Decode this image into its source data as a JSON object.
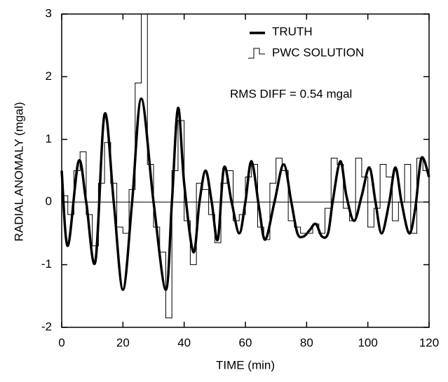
{
  "chart_data": {
    "type": "line",
    "xlabel": "TIME (min)",
    "ylabel": "RADIAL ANOMALY (mgal)",
    "annotation": "RMS DIFF = 0.54 mgal",
    "xlim": [
      0,
      120
    ],
    "xticks": [
      0,
      20,
      40,
      60,
      80,
      100,
      120
    ],
    "ylim": [
      -2,
      3
    ],
    "yticks": [
      -2,
      -1,
      0,
      1,
      2,
      3
    ],
    "reference_line": 0,
    "series": [
      {
        "name": "TRUTH",
        "color": "#000000",
        "style": "smooth",
        "x": [
          0,
          2,
          5.5,
          8,
          11,
          14,
          17,
          20,
          23,
          26,
          30,
          34,
          36,
          38,
          40,
          43,
          45,
          47,
          49,
          51,
          53,
          55.5,
          58,
          60,
          62,
          64.5,
          66.5,
          69.5,
          72.5,
          75,
          77,
          79,
          81,
          83,
          85,
          87,
          88.5,
          91,
          93,
          95.5,
          98,
          100.5,
          102.5,
          104.5,
          107,
          109,
          111,
          113.5,
          115.5,
          117.5,
          120
        ],
        "values": [
          0.5,
          -0.7,
          0.65,
          0,
          -0.95,
          1.4,
          0,
          -1.4,
          0,
          1.65,
          0,
          -1.4,
          0,
          1.5,
          0.3,
          -0.8,
          0,
          0.5,
          0,
          -0.6,
          0.55,
          0,
          -0.5,
          0,
          0.65,
          -0.1,
          -0.6,
          0,
          0.6,
          0,
          -0.5,
          -0.55,
          -0.45,
          -0.35,
          -0.55,
          -0.5,
          0,
          0.65,
          0.1,
          -0.3,
          0.1,
          0.55,
          0,
          -0.5,
          0,
          0.55,
          0,
          -0.5,
          -0.1,
          0.7,
          0.4
        ]
      },
      {
        "name": "PWC SOLUTION",
        "color": "#000000",
        "style": "step",
        "x": [
          0,
          2,
          4,
          6,
          8,
          10,
          12,
          14,
          16,
          18,
          20,
          22,
          24,
          26,
          28,
          30,
          32,
          34,
          36,
          38,
          40,
          42,
          44,
          46,
          48,
          50,
          52,
          54,
          56,
          58,
          60,
          62,
          64,
          66,
          68,
          70,
          72,
          74,
          76,
          78,
          80,
          82,
          84,
          86,
          88,
          90,
          92,
          94,
          96,
          98,
          100,
          102,
          104,
          106,
          108,
          110,
          112,
          114,
          116,
          118
        ],
        "values": [
          0.1,
          -0.2,
          0.5,
          0.8,
          -0.2,
          -0.7,
          0.3,
          0.95,
          0.3,
          -0.4,
          -0.5,
          0.2,
          1.9,
          3.0,
          0.6,
          -0.4,
          -0.8,
          -1.85,
          0.5,
          1.3,
          -0.3,
          -1.0,
          0.3,
          0.2,
          -0.2,
          -0.65,
          0.3,
          0.5,
          -0.3,
          -0.2,
          0.4,
          0.6,
          -0.4,
          -0.6,
          0.3,
          0.7,
          0.5,
          -0.3,
          -0.4,
          -0.5,
          -0.5,
          -0.35,
          -0.5,
          -0.1,
          0.7,
          0.6,
          -0.1,
          -0.3,
          0.7,
          0.4,
          -0.4,
          -0.1,
          0.6,
          0.4,
          -0.3,
          0.0,
          0.6,
          -0.5,
          0.7,
          0.5
        ]
      }
    ]
  }
}
